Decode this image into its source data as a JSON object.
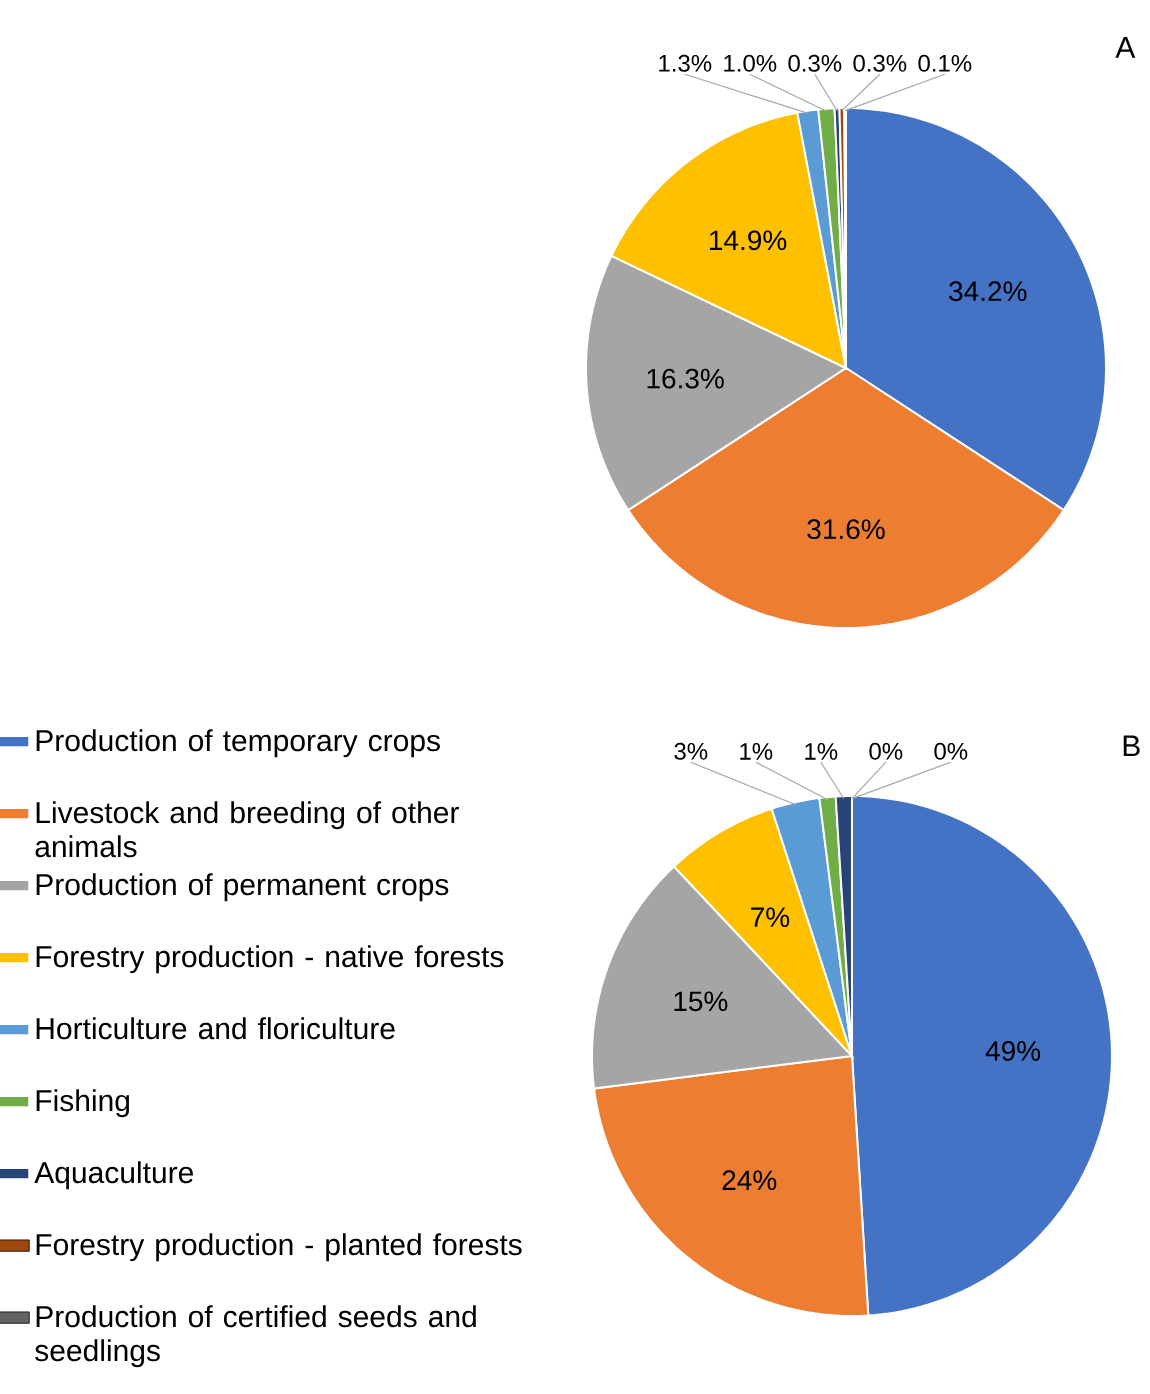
{
  "chart_data": [
    {
      "type": "pie",
      "title": "A",
      "categories": [
        null,
        null,
        null,
        null,
        null,
        null,
        null,
        null,
        null
      ],
      "values": [
        34.2,
        31.6,
        16.3,
        14.9,
        1.3,
        1.0,
        0.3,
        0.3,
        0.1
      ],
      "value_labels": [
        "34.2%",
        "31.6%",
        "16.3%",
        "14.9%",
        "1.3%",
        "1.0%",
        "0.3%",
        "0.3%",
        "0.1%"
      ],
      "colors": [
        "#4472c4",
        "#ed7d31",
        "#a5a5a5",
        "#ffc000",
        "#5b9bd5",
        "#70ad47",
        "#264478",
        "#9e480e",
        "#636363"
      ]
    },
    {
      "type": "pie",
      "title": "B",
      "legend": "left",
      "categories": [
        "Production of temporary crops",
        "Livestock and breeding of other animals",
        "Production of permanent crops",
        "Forestry production - native forests",
        "Horticulture and floriculture",
        "Fishing",
        "Aquaculture",
        "Forestry production - planted forests",
        "Production of certified seeds and seedlings"
      ],
      "values": [
        49,
        24,
        15,
        7,
        3,
        1,
        1,
        0,
        0
      ],
      "value_labels": [
        "49%",
        "24%",
        "15%",
        "7%",
        "3%",
        "1%",
        "1%",
        "0%",
        "0%"
      ],
      "colors": [
        "#4472c4",
        "#ed7d31",
        "#a5a5a5",
        "#ffc000",
        "#5b9bd5",
        "#70ad47",
        "#264478",
        "#9e480e",
        "#636363"
      ]
    }
  ]
}
